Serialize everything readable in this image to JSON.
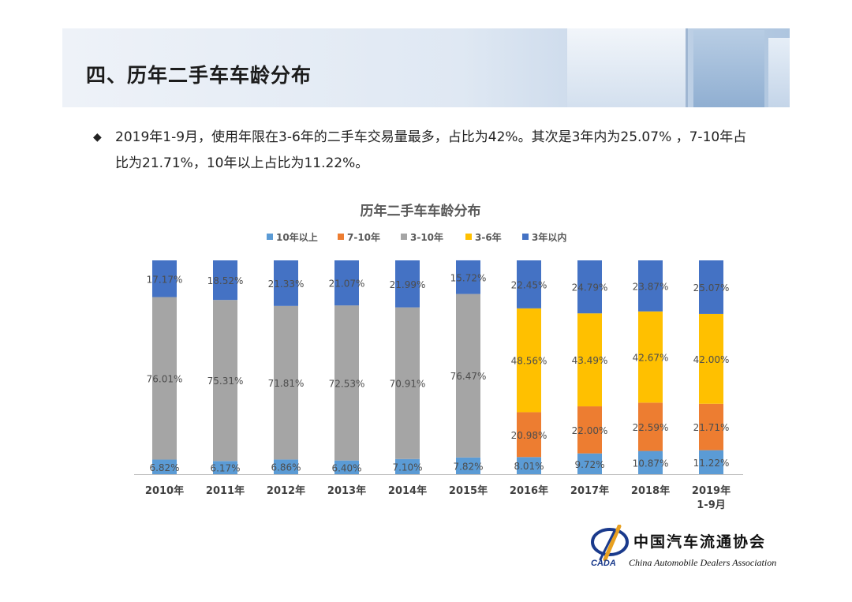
{
  "header": {
    "title": "四、历年二手车车龄分布"
  },
  "summary": {
    "bullet_icon": "diamond-bullet",
    "text": "2019年1-9月，使用年限在3-6年的二手车交易量最多，占比为42%。其次是3年内为25.07% ，7-10年占比为21.71%，10年以上占比为11.22%。"
  },
  "chart_data": {
    "type": "bar",
    "stacked": true,
    "normalized": true,
    "title": "历年二手车车龄分布",
    "legend_position": "top",
    "xlabel": "",
    "ylabel": "",
    "ylim": [
      0,
      100
    ],
    "categories": [
      "2010年",
      "2011年",
      "2012年",
      "2013年",
      "2014年",
      "2015年",
      "2016年",
      "2017年",
      "2018年",
      "2019年\n1-9月"
    ],
    "series": [
      {
        "name": "10年以上",
        "color": "#5b9bd5",
        "values": [
          6.82,
          6.17,
          6.86,
          6.4,
          7.1,
          7.82,
          8.01,
          9.72,
          10.87,
          11.22
        ],
        "labels": [
          "6.82%",
          "6.17%",
          "6.86%",
          "6.40%",
          "7.10%",
          "7.82%",
          "8.01%",
          "9.72%",
          "10.87%",
          "11.22%"
        ]
      },
      {
        "name": "7-10年",
        "color": "#ed7d31",
        "values": [
          null,
          null,
          null,
          null,
          null,
          null,
          20.98,
          22.0,
          22.59,
          21.71
        ],
        "labels": [
          null,
          null,
          null,
          null,
          null,
          null,
          "20.98%",
          "22.00%",
          "22.59%",
          "21.71%"
        ]
      },
      {
        "name": "3-10年",
        "color": "#a5a5a5",
        "values": [
          76.01,
          75.31,
          71.81,
          72.53,
          70.91,
          76.47,
          null,
          null,
          null,
          null
        ],
        "labels": [
          "76.01%",
          "75.31%",
          "71.81%",
          "72.53%",
          "70.91%",
          "76.47%",
          null,
          null,
          null,
          null
        ]
      },
      {
        "name": "3-6年",
        "color": "#ffc000",
        "values": [
          null,
          null,
          null,
          null,
          null,
          null,
          48.56,
          43.49,
          42.67,
          42.0
        ],
        "labels": [
          null,
          null,
          null,
          null,
          null,
          null,
          "48.56%",
          "43.49%",
          "42.67%",
          "42.00%"
        ]
      },
      {
        "name": "3年以内",
        "color": "#4472c4",
        "values": [
          17.17,
          18.52,
          21.33,
          21.07,
          21.99,
          15.72,
          22.45,
          24.79,
          23.87,
          25.07
        ],
        "labels": [
          "17.17%",
          "18.52%",
          "21.33%",
          "21.07%",
          "21.99%",
          "15.72%",
          "22.45%",
          "24.79%",
          "23.87%",
          "25.07%"
        ]
      }
    ]
  },
  "logo": {
    "name_cn": "中国汽车流通协会",
    "name_en": "China Automobile Dealers Association",
    "abbr": "CADA",
    "colors": {
      "brand_blue": "#1a3a8c",
      "brand_gold": "#e8a020"
    }
  }
}
